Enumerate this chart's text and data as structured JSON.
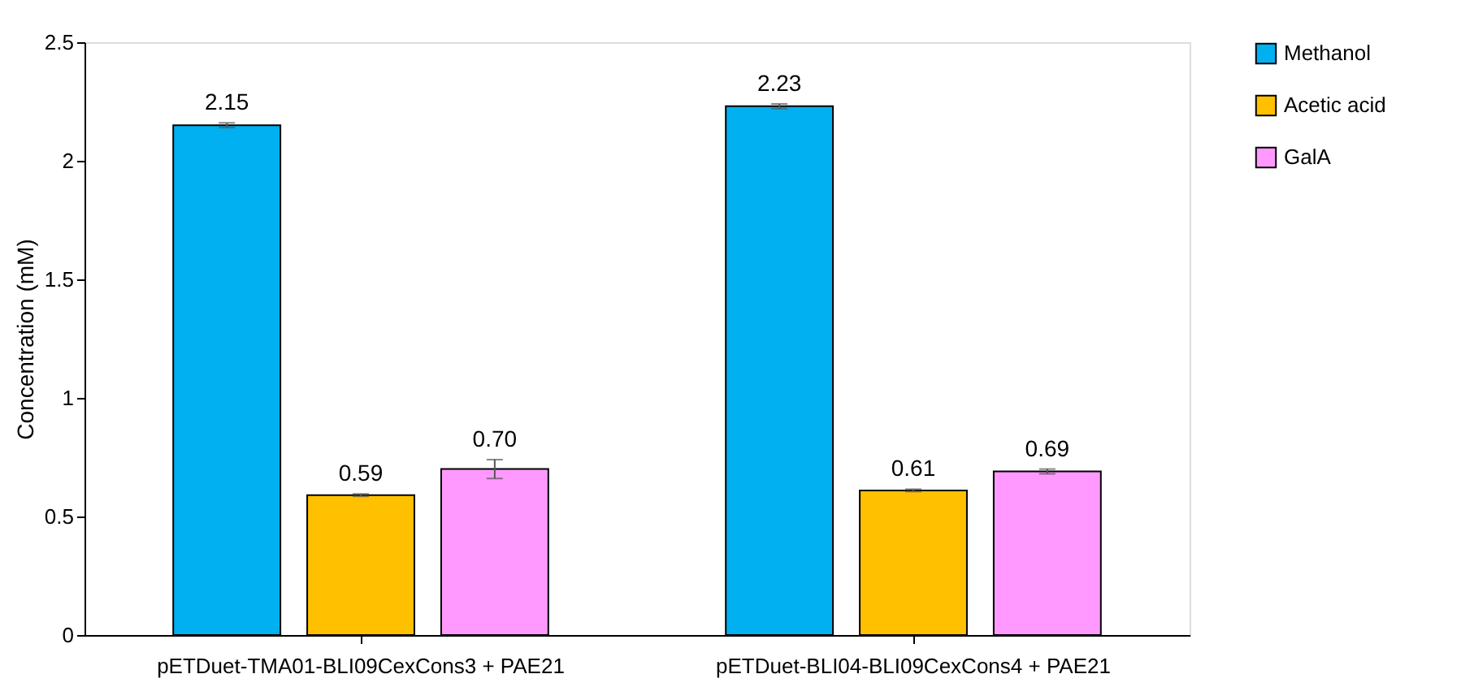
{
  "chart_data": {
    "type": "bar",
    "categories": [
      "pETDuet-TMA01-BLI09CexCons3 + PAE21",
      "pETDuet-BLI04-BLI09CexCons4 + PAE21"
    ],
    "ylabel": "Concentration (mM)",
    "ylim": [
      0,
      2.5
    ],
    "yticks": [
      0,
      0.5,
      1,
      1.5,
      2,
      2.5
    ],
    "grid": false,
    "legend": "right",
    "series": [
      {
        "name": "Methanol",
        "color": "#00b0f0",
        "values": [
          2.15,
          2.23
        ],
        "errors": [
          0.01,
          0.01
        ],
        "value_labels": [
          "2.15",
          "2.23"
        ]
      },
      {
        "name": "Acetic acid",
        "color": "#ffc000",
        "values": [
          0.59,
          0.61
        ],
        "errors": [
          0.005,
          0.005
        ],
        "value_labels": [
          "0.59",
          "0.61"
        ]
      },
      {
        "name": "GalA",
        "color": "#ff99ff",
        "values": [
          0.7,
          0.69
        ],
        "errors": [
          0.04,
          0.01
        ],
        "value_labels": [
          "0.70",
          "0.69"
        ]
      }
    ]
  }
}
